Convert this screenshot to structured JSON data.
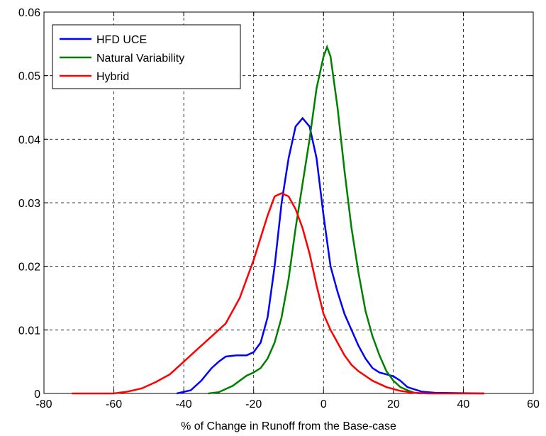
{
  "chart_data": {
    "type": "line",
    "xlabel": "% of Change in Runoff from the Base-case",
    "xlim": [
      -80,
      60
    ],
    "xticks": [
      -80,
      -60,
      -40,
      -20,
      0,
      20,
      40,
      60
    ],
    "ylim": [
      0,
      0.06
    ],
    "yticks": [
      0,
      0.01,
      0.02,
      0.03,
      0.04,
      0.05,
      0.06
    ],
    "grid": true,
    "legend": "upper left",
    "series": [
      {
        "name": "HFD UCE",
        "color": "#0000ff",
        "x": [
          -42,
          -38,
          -35,
          -32,
          -30,
          -28,
          -25,
          -22,
          -20,
          -18,
          -16,
          -14,
          -12,
          -10,
          -8,
          -6,
          -4,
          -2,
          0,
          2,
          4,
          6,
          8,
          10,
          12,
          14,
          16,
          18,
          20,
          22,
          24,
          28,
          32,
          46
        ],
        "values": [
          0,
          0.0005,
          0.002,
          0.004,
          0.005,
          0.0058,
          0.006,
          0.006,
          0.0065,
          0.008,
          0.012,
          0.02,
          0.03,
          0.037,
          0.042,
          0.0433,
          0.042,
          0.037,
          0.028,
          0.02,
          0.016,
          0.0125,
          0.01,
          0.0075,
          0.0055,
          0.004,
          0.0033,
          0.003,
          0.0027,
          0.002,
          0.001,
          0.0003,
          0.0001,
          0
        ]
      },
      {
        "name": "Natural Variability",
        "color": "#008000",
        "x": [
          -33,
          -30,
          -28,
          -26,
          -24,
          -22,
          -20,
          -18,
          -16,
          -14,
          -12,
          -10,
          -8,
          -6,
          -4,
          -2,
          0,
          1,
          2,
          4,
          6,
          8,
          10,
          12,
          14,
          16,
          18,
          20,
          22,
          24,
          26,
          28
        ],
        "values": [
          0,
          0.0002,
          0.0007,
          0.0012,
          0.002,
          0.0028,
          0.0033,
          0.004,
          0.0055,
          0.008,
          0.012,
          0.018,
          0.026,
          0.033,
          0.04,
          0.048,
          0.053,
          0.0545,
          0.053,
          0.045,
          0.035,
          0.026,
          0.019,
          0.013,
          0.009,
          0.006,
          0.0035,
          0.002,
          0.001,
          0.0005,
          0.0001,
          0
        ]
      },
      {
        "name": "Hybrid",
        "color": "#ff0000",
        "x": [
          -72,
          -60,
          -56,
          -52,
          -48,
          -44,
          -40,
          -36,
          -32,
          -28,
          -24,
          -20,
          -18,
          -16,
          -14,
          -12,
          -10,
          -8,
          -6,
          -4,
          -2,
          0,
          2,
          4,
          6,
          8,
          10,
          14,
          18,
          22,
          26,
          30,
          46
        ],
        "values": [
          0,
          0,
          0.0003,
          0.0008,
          0.0018,
          0.003,
          0.005,
          0.007,
          0.009,
          0.011,
          0.015,
          0.021,
          0.0245,
          0.028,
          0.031,
          0.0315,
          0.031,
          0.029,
          0.026,
          0.022,
          0.017,
          0.0125,
          0.01,
          0.008,
          0.006,
          0.0045,
          0.0035,
          0.002,
          0.001,
          0.0004,
          0.0001,
          0,
          0
        ]
      }
    ]
  }
}
